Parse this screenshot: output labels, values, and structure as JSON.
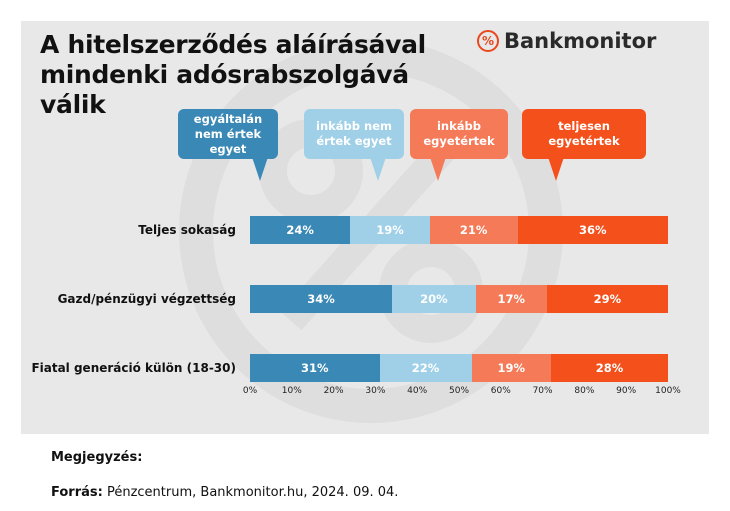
{
  "title": "A hitelszerződés aláírásával mindenki adósrabszolgává válik",
  "brand": {
    "icon": "percent-icon",
    "name": "Bankmonitor",
    "accent": "#e8491d"
  },
  "chart_data": {
    "type": "bar",
    "stacked": true,
    "orientation": "horizontal",
    "categories": [
      "Teljes sokaság",
      "Gazd/pénzügyi végzettség",
      "Fiatal generáció külön (18-30)"
    ],
    "series": [
      {
        "name": "egyáltalán nem értek egyet",
        "color": "#3a88b5",
        "values": [
          24,
          34,
          31
        ]
      },
      {
        "name": "inkább nem értek egyet",
        "color": "#9fd0e8",
        "values": [
          19,
          20,
          22
        ]
      },
      {
        "name": "inkább egyetértek",
        "color": "#f47a58",
        "values": [
          21,
          17,
          19
        ]
      },
      {
        "name": "teljesen egyetértek",
        "color": "#f4501c",
        "values": [
          36,
          29,
          28
        ]
      }
    ],
    "xlim": [
      0,
      100
    ],
    "x_ticks": [
      "0%",
      "10%",
      "20%",
      "30%",
      "40%",
      "50%",
      "60%",
      "70%",
      "80%",
      "90%",
      "100%"
    ],
    "legend_placement": "top"
  },
  "footer": {
    "note_label": "Megjegyzés:",
    "source_label": "Forrás:",
    "source_text": "Pénzcentrum, Bankmonitor.hu, 2024. 09. 04."
  }
}
